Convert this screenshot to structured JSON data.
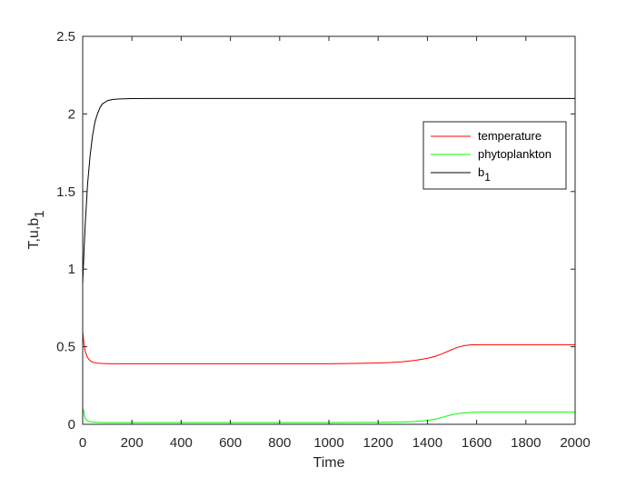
{
  "chart_data": {
    "type": "line",
    "xlabel": "Time",
    "ylabel": {
      "base": "T,u,b",
      "subscript": "1"
    },
    "xlim": [
      0,
      2000
    ],
    "ylim": [
      0,
      2.5
    ],
    "xticks": [
      0,
      200,
      400,
      600,
      800,
      1000,
      1200,
      1400,
      1600,
      1800,
      2000
    ],
    "yticks": [
      0,
      0.5,
      1,
      1.5,
      2,
      2.5
    ],
    "xtick_labels": [
      "0",
      "200",
      "400",
      "600",
      "800",
      "1000",
      "1200",
      "1400",
      "1600",
      "1800",
      "2000"
    ],
    "ytick_labels": [
      "0",
      "0.5",
      "1",
      "1.5",
      "2",
      "2.5"
    ],
    "grid": false,
    "box": true,
    "legend_position": "upper-right",
    "series": [
      {
        "name": "temperature",
        "legend_label": {
          "base": "temperature",
          "subscript": ""
        },
        "color": "#ff0000",
        "x": [
          0,
          5,
          10,
          20,
          30,
          40,
          50,
          60,
          80,
          100,
          150,
          200,
          400,
          600,
          800,
          1000,
          1100,
          1200,
          1250,
          1300,
          1350,
          1400,
          1430,
          1460,
          1490,
          1520,
          1550,
          1580,
          1620,
          1700,
          1800,
          2000
        ],
        "y": [
          0.6,
          0.52,
          0.47,
          0.43,
          0.41,
          0.4,
          0.397,
          0.394,
          0.392,
          0.391,
          0.39,
          0.39,
          0.39,
          0.39,
          0.39,
          0.39,
          0.392,
          0.395,
          0.398,
          0.403,
          0.412,
          0.425,
          0.437,
          0.455,
          0.475,
          0.495,
          0.507,
          0.512,
          0.513,
          0.513,
          0.513,
          0.513
        ]
      },
      {
        "name": "phytoplankton",
        "legend_label": {
          "base": "phytoplankton",
          "subscript": ""
        },
        "color": "#00ff00",
        "x": [
          0,
          3,
          6,
          10,
          15,
          20,
          30,
          40,
          60,
          100,
          200,
          400,
          800,
          1000,
          1200,
          1300,
          1350,
          1400,
          1430,
          1460,
          1490,
          1520,
          1550,
          1580,
          1620,
          1700,
          2000
        ],
        "y": [
          0.075,
          0.095,
          0.06,
          0.04,
          0.03,
          0.022,
          0.017,
          0.015,
          0.013,
          0.012,
          0.012,
          0.012,
          0.012,
          0.012,
          0.013,
          0.015,
          0.018,
          0.025,
          0.033,
          0.045,
          0.058,
          0.068,
          0.074,
          0.077,
          0.078,
          0.078,
          0.078
        ]
      },
      {
        "name": "b1",
        "legend_label": {
          "base": "b",
          "subscript": "1"
        },
        "color": "#000000",
        "x": [
          0,
          5,
          10,
          20,
          30,
          40,
          50,
          60,
          70,
          80,
          100,
          120,
          150,
          200,
          300,
          500,
          1000,
          2000
        ],
        "y": [
          0.9,
          1.1,
          1.28,
          1.55,
          1.73,
          1.86,
          1.95,
          2.0,
          2.04,
          2.065,
          2.085,
          2.093,
          2.097,
          2.099,
          2.1,
          2.1,
          2.1,
          2.1
        ]
      }
    ]
  }
}
